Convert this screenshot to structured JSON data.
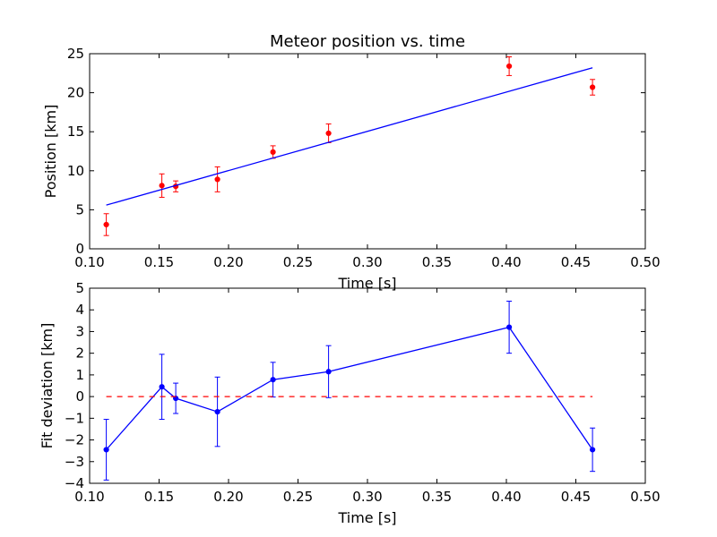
{
  "chart_data": [
    {
      "type": "scatter",
      "title": "Meteor position vs. time",
      "xlabel": "Time [s]",
      "ylabel": "Position [km]",
      "xlim": [
        0.1,
        0.5
      ],
      "ylim": [
        0,
        25
      ],
      "xticks": [
        "0.10",
        "0.15",
        "0.20",
        "0.25",
        "0.30",
        "0.35",
        "0.40",
        "0.45",
        "0.50"
      ],
      "yticks": [
        "0",
        "5",
        "10",
        "15",
        "20",
        "25"
      ],
      "series": [
        {
          "kind": "errorbar",
          "color": "#ff0000",
          "x": [
            0.112,
            0.152,
            0.162,
            0.192,
            0.232,
            0.272,
            0.402,
            0.462
          ],
          "y": [
            3.1,
            8.1,
            8.0,
            8.9,
            12.4,
            14.8,
            23.4,
            20.7
          ],
          "yerr": [
            1.4,
            1.5,
            0.7,
            1.6,
            0.8,
            1.2,
            1.2,
            1.0
          ]
        },
        {
          "kind": "line",
          "color": "#0000ff",
          "x": [
            0.112,
            0.462
          ],
          "y": [
            5.6,
            23.2
          ]
        }
      ]
    },
    {
      "type": "line",
      "title": "",
      "xlabel": "Time [s]",
      "ylabel": "Fit deviation [km]",
      "xlim": [
        0.1,
        0.5
      ],
      "ylim": [
        -4,
        5
      ],
      "xticks": [
        "0.10",
        "0.15",
        "0.20",
        "0.25",
        "0.30",
        "0.35",
        "0.40",
        "0.45",
        "0.50"
      ],
      "yticks": [
        "−4",
        "−3",
        "−2",
        "−1",
        "0",
        "1",
        "2",
        "3",
        "4",
        "5"
      ],
      "series": [
        {
          "kind": "errorbar-line",
          "color": "#0000ff",
          "x": [
            0.112,
            0.152,
            0.162,
            0.192,
            0.232,
            0.272,
            0.402,
            0.462
          ],
          "y": [
            -2.45,
            0.45,
            -0.08,
            -0.7,
            0.78,
            1.15,
            3.2,
            -2.45
          ],
          "yerr": [
            1.4,
            1.5,
            0.7,
            1.6,
            0.8,
            1.2,
            1.2,
            1.0
          ]
        },
        {
          "kind": "dashed-line",
          "color": "#ff0000",
          "x": [
            0.112,
            0.462
          ],
          "y": [
            0,
            0
          ]
        }
      ]
    }
  ]
}
